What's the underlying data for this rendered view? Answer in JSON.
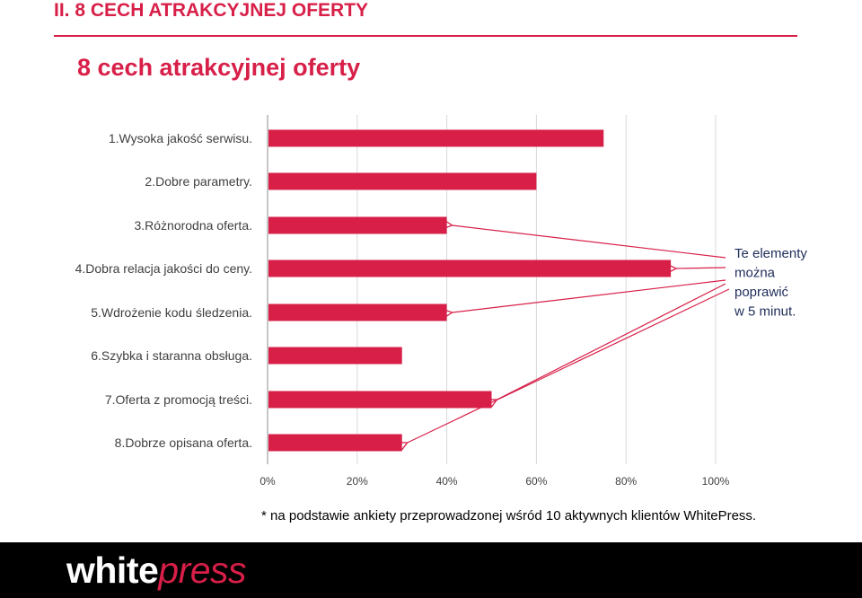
{
  "header": {
    "section_title": "II. 8 CECH ATRAKCYJNEJ OFERTY",
    "slide_title": "8 cech atrakcyjnej oferty"
  },
  "chart_data": {
    "type": "bar",
    "orientation": "horizontal",
    "categories": [
      "1.Wysoka jakość serwisu.",
      "2.Dobre parametry.",
      "3.Różnorodna oferta.",
      "4.Dobra relacja jakości do ceny.",
      "5.Wdrożenie kodu śledzenia.",
      "6.Szybka i staranna obsługa.",
      "7.Oferta z promocją treści.",
      "8.Dobrze opisana oferta."
    ],
    "values": [
      75,
      60,
      40,
      90,
      40,
      30,
      50,
      30
    ],
    "xlim": [
      0,
      100
    ],
    "xticks": [
      "0%",
      "20%",
      "40%",
      "60%",
      "80%",
      "100%"
    ],
    "grid": true,
    "bar_color": "#d71f48",
    "annotation": {
      "text_lines": [
        "Te elementy",
        "można",
        "poprawić",
        "w 5 minut."
      ],
      "points_to_categories": [
        2,
        3,
        4,
        6,
        7
      ]
    }
  },
  "footnote": "* na podstawie ankiety przeprowadzonej wśród 10 aktywnych klientów WhitePress.",
  "logo": {
    "part1": "white",
    "part2": "press"
  },
  "colors": {
    "accent": "#d71f48",
    "footer": "#000000"
  }
}
